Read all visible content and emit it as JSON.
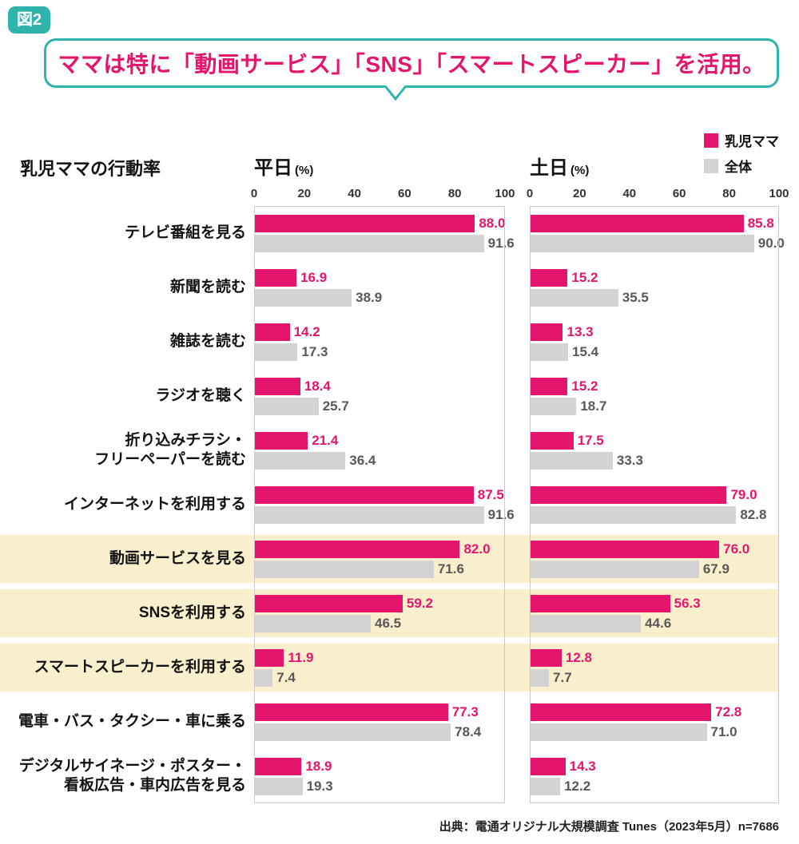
{
  "badge": "図2",
  "title": "ママは特に「動画サービス」「SNS」「スマートスピーカー」を活用。",
  "section_title": "乳児ママの行動率",
  "panels": [
    {
      "label": "平日",
      "unit": "(%)"
    },
    {
      "label": "土日",
      "unit": "(%)"
    }
  ],
  "legend": [
    {
      "label": "乳児ママ",
      "color": "#e5156d"
    },
    {
      "label": "全体",
      "color": "#d3d3d3"
    }
  ],
  "colors": {
    "accent": "#e5156d",
    "bar_overall": "#d3d3d3",
    "teal": "#2fb4ac",
    "highlight_row": "#f9efcc",
    "value_overall_text": "#595757",
    "panel_border": "#c9c9c9"
  },
  "source": "出典：電通オリジナル大規模調査 Tunes（2023年5月）n=7686",
  "chart_data": {
    "type": "bar",
    "orientation": "horizontal",
    "unit": "%",
    "axis": {
      "min": 0,
      "max": 100,
      "ticks": [
        0,
        20,
        40,
        60,
        80,
        100
      ]
    },
    "panel_names": [
      "平日",
      "土日"
    ],
    "series_names": [
      "乳児ママ",
      "全体"
    ],
    "categories": [
      {
        "label": "テレビ番組を見る",
        "lines": [
          "テレビ番組を見る"
        ],
        "highlight": false,
        "weekday": [
          88.0,
          91.6
        ],
        "weekend": [
          85.8,
          90.0
        ]
      },
      {
        "label": "新聞を読む",
        "lines": [
          "新聞を読む"
        ],
        "highlight": false,
        "weekday": [
          16.9,
          38.9
        ],
        "weekend": [
          15.2,
          35.5
        ]
      },
      {
        "label": "雑誌を読む",
        "lines": [
          "雑誌を読む"
        ],
        "highlight": false,
        "weekday": [
          14.2,
          17.3
        ],
        "weekend": [
          13.3,
          15.4
        ]
      },
      {
        "label": "ラジオを聴く",
        "lines": [
          "ラジオを聴く"
        ],
        "highlight": false,
        "weekday": [
          18.4,
          25.7
        ],
        "weekend": [
          15.2,
          18.7
        ]
      },
      {
        "label": "折り込みチラシ・フリーペーパーを読む",
        "lines": [
          "折り込みチラシ・",
          "フリーペーパーを読む"
        ],
        "highlight": false,
        "weekday": [
          21.4,
          36.4
        ],
        "weekend": [
          17.5,
          33.3
        ]
      },
      {
        "label": "インターネットを利用する",
        "lines": [
          "インターネットを利用する"
        ],
        "highlight": false,
        "weekday": [
          87.5,
          91.6
        ],
        "weekend": [
          79.0,
          82.8
        ]
      },
      {
        "label": "動画サービスを見る",
        "lines": [
          "動画サービスを見る"
        ],
        "highlight": true,
        "weekday": [
          82.0,
          71.6
        ],
        "weekend": [
          76.0,
          67.9
        ]
      },
      {
        "label": "SNSを利用する",
        "lines": [
          "SNSを利用する"
        ],
        "highlight": true,
        "weekday": [
          59.2,
          46.5
        ],
        "weekend": [
          56.3,
          44.6
        ]
      },
      {
        "label": "スマートスピーカーを利用する",
        "lines": [
          "スマートスピーカーを利用する"
        ],
        "highlight": true,
        "weekday": [
          11.9,
          7.4
        ],
        "weekend": [
          12.8,
          7.7
        ]
      },
      {
        "label": "電車・バス・タクシー・車に乗る",
        "lines": [
          "電車・バス・タクシー・車に乗る"
        ],
        "highlight": false,
        "weekday": [
          77.3,
          78.4
        ],
        "weekend": [
          72.8,
          71.0
        ]
      },
      {
        "label": "デジタルサイネージ・ポスター・看板広告・車内広告を見る",
        "lines": [
          "デジタルサイネージ・ポスター・",
          "看板広告・車内広告を見る"
        ],
        "highlight": false,
        "weekday": [
          18.9,
          19.3
        ],
        "weekend": [
          14.3,
          12.2
        ]
      }
    ]
  }
}
